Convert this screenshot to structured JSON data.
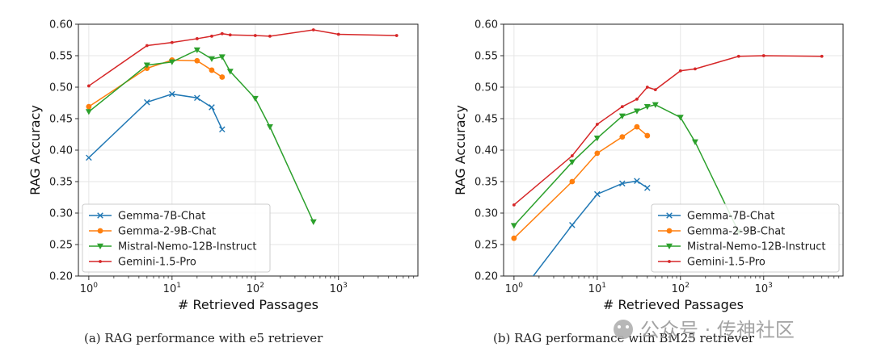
{
  "chart_data": [
    {
      "type": "line",
      "x_scale": "log",
      "xlabel": "# Retrieved Passages",
      "ylabel": "RAG Accuracy",
      "ylim": [
        0.2,
        0.6
      ],
      "xlim": [
        0.75,
        9000
      ],
      "yticks": [
        "0.20",
        "0.25",
        "0.30",
        "0.35",
        "0.40",
        "0.45",
        "0.50",
        "0.55",
        "0.60"
      ],
      "xticks": [
        "10^0",
        "10^1",
        "10^2",
        "10^3"
      ],
      "grid": true,
      "legend_placement": "bottom-left",
      "caption": "(a)  RAG performance with e5 retriever",
      "series": [
        {
          "name": "Gemma-7B-Chat",
          "color": "#1f77b4",
          "marker": "x",
          "x": [
            1,
            5,
            10,
            20,
            30,
            40
          ],
          "y": [
            0.388,
            0.476,
            0.489,
            0.483,
            0.468,
            0.433
          ]
        },
        {
          "name": "Gemma-2-9B-Chat",
          "color": "#ff7f0e",
          "marker": "circle",
          "x": [
            1,
            5,
            10,
            20,
            30,
            40
          ],
          "y": [
            0.469,
            0.53,
            0.543,
            0.542,
            0.527,
            0.516
          ]
        },
        {
          "name": "Mistral-Nemo-12B-Instruct",
          "color": "#2ca02c",
          "marker": "triangle-down",
          "x": [
            1,
            5,
            10,
            20,
            30,
            40,
            50,
            100,
            150,
            500
          ],
          "y": [
            0.461,
            0.535,
            0.54,
            0.559,
            0.545,
            0.548,
            0.525,
            0.482,
            0.437,
            0.286
          ]
        },
        {
          "name": "Gemini-1.5-Pro",
          "color": "#d62728",
          "marker": "dot",
          "x": [
            1,
            5,
            10,
            20,
            30,
            40,
            50,
            100,
            150,
            500,
            1000,
            5000
          ],
          "y": [
            0.502,
            0.566,
            0.571,
            0.577,
            0.581,
            0.585,
            0.583,
            0.582,
            0.581,
            0.591,
            0.584,
            0.582
          ]
        }
      ]
    },
    {
      "type": "line",
      "x_scale": "log",
      "xlabel": "# Retrieved Passages",
      "ylabel": "RAG Accuracy",
      "ylim": [
        0.2,
        0.6
      ],
      "xlim": [
        0.75,
        9000
      ],
      "yticks": [
        "0.20",
        "0.25",
        "0.30",
        "0.35",
        "0.40",
        "0.45",
        "0.50",
        "0.55",
        "0.60"
      ],
      "xticks": [
        "10^0",
        "10^1",
        "10^2",
        "10^3"
      ],
      "grid": true,
      "legend_placement": "bottom-right",
      "caption": "(b)  RAG performance with BM25 retriever",
      "series": [
        {
          "name": "Gemma-7B-Chat",
          "color": "#1f77b4",
          "marker": "x",
          "x": [
            1,
            5,
            10,
            20,
            30,
            40
          ],
          "y": [
            0.16,
            0.281,
            0.33,
            0.347,
            0.351,
            0.34
          ]
        },
        {
          "name": "Gemma-2-9B-Chat",
          "color": "#ff7f0e",
          "marker": "circle",
          "x": [
            1,
            5,
            10,
            20,
            30,
            40
          ],
          "y": [
            0.26,
            0.35,
            0.395,
            0.421,
            0.437,
            0.423
          ]
        },
        {
          "name": "Mistral-Nemo-12B-Instruct",
          "color": "#2ca02c",
          "marker": "triangle-down",
          "x": [
            1,
            5,
            10,
            20,
            30,
            40,
            50,
            100,
            150,
            500
          ],
          "y": [
            0.28,
            0.381,
            0.419,
            0.454,
            0.462,
            0.469,
            0.472,
            0.452,
            0.413,
            0.27
          ]
        },
        {
          "name": "Gemini-1.5-Pro",
          "color": "#d62728",
          "marker": "dot",
          "x": [
            1,
            5,
            10,
            20,
            30,
            40,
            50,
            100,
            150,
            500,
            1000,
            5000
          ],
          "y": [
            0.313,
            0.391,
            0.441,
            0.469,
            0.481,
            0.5,
            0.496,
            0.526,
            0.529,
            0.549,
            0.55,
            0.549
          ]
        }
      ]
    }
  ],
  "watermark": "公众号 · 传神社区"
}
